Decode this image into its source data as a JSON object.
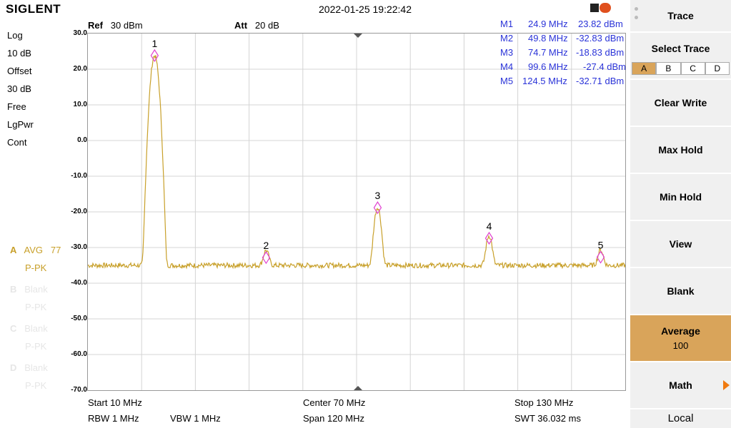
{
  "brand": "SIGLENT",
  "datetime": "2022-01-25 19:22:42",
  "header": {
    "ref_label": "Ref",
    "ref_value": "30 dBm",
    "att_label": "Att",
    "att_value": "20 dB"
  },
  "left_panel": [
    "Log",
    "10 dB",
    "Offset",
    "30 dB",
    "Free",
    "LgPwr",
    "Cont"
  ],
  "traces": [
    {
      "id": "A",
      "mode": "AVG",
      "count": "77",
      "det": "P-PK",
      "active": true
    },
    {
      "id": "B",
      "mode": "Blank",
      "count": "",
      "det": "P-PK",
      "active": false
    },
    {
      "id": "C",
      "mode": "Blank",
      "count": "",
      "det": "P-PK",
      "active": false
    },
    {
      "id": "D",
      "mode": "Blank",
      "count": "",
      "det": "P-PK",
      "active": false
    }
  ],
  "y_ticks": [
    "30.0",
    "20.0",
    "10.0",
    "0.0",
    "-10.0",
    "-20.0",
    "-30.0",
    "-40.0",
    "-50.0",
    "-60.0",
    "-70.0"
  ],
  "markers": [
    {
      "name": "M1",
      "freq": "24.9 MHz",
      "amp": "23.82 dBm",
      "label": "1"
    },
    {
      "name": "M2",
      "freq": "49.8 MHz",
      "amp": "-32.83 dBm",
      "label": "2"
    },
    {
      "name": "M3",
      "freq": "74.7 MHz",
      "amp": "-18.83 dBm",
      "label": "3"
    },
    {
      "name": "M4",
      "freq": "99.6 MHz",
      "amp": "-27.4 dBm",
      "label": "4"
    },
    {
      "name": "M5",
      "freq": "124.5 MHz",
      "amp": "-32.71 dBm",
      "label": "5"
    }
  ],
  "bottom": {
    "start": "Start  10 MHz",
    "center": "Center  70 MHz",
    "stop": "Stop  130 MHz",
    "rbw": "RBW  1 MHz",
    "vbw": "VBW  1 MHz",
    "span": "Span  120 MHz",
    "swt": "SWT  36.032 ms"
  },
  "softkeys": {
    "trace": "Trace",
    "select_trace": "Select Trace",
    "trace_tabs": [
      "A",
      "B",
      "C",
      "D"
    ],
    "clear_write": "Clear Write",
    "max_hold": "Max Hold",
    "min_hold": "Min Hold",
    "view": "View",
    "blank": "Blank",
    "average": "Average",
    "average_value": "100",
    "math": "Math",
    "local": "Local"
  },
  "colors": {
    "trace": "#c8a02a",
    "marker": "#e040d0",
    "marker_text": "#2a33d8",
    "active_key": "#d9a45a"
  }
}
